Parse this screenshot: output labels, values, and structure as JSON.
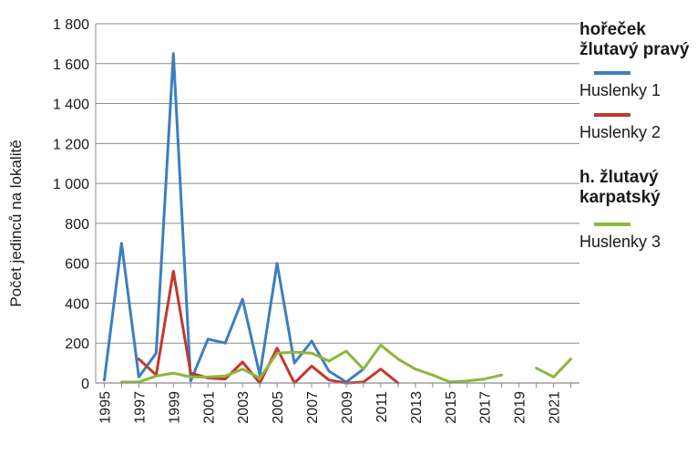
{
  "chart_data": {
    "type": "line",
    "ylabel": "Počet jedinců na lokalitě",
    "xlabel": "",
    "ylim": [
      0,
      1800
    ],
    "xlim": [
      1995,
      2022
    ],
    "yticks": [
      0,
      200,
      400,
      600,
      800,
      1000,
      1200,
      1400,
      1600,
      1800
    ],
    "ytick_labels": [
      "0",
      "200",
      "400",
      "600",
      "800",
      "1 000",
      "1 200",
      "1 400",
      "1 600",
      "1 800"
    ],
    "xtick_labels": [
      "1995",
      "1997",
      "1999",
      "2001",
      "2003",
      "2005",
      "2007",
      "2009",
      "2011",
      "2013",
      "2015",
      "2017",
      "2019",
      "2021"
    ],
    "grid": "horizontal",
    "legend_position": "right",
    "legend_groups": [
      {
        "title": "hořeček žlutavý pravý",
        "series_indices": [
          0,
          1
        ]
      },
      {
        "title": "h. žlutavý karpatský",
        "series_indices": [
          2
        ]
      }
    ],
    "series": [
      {
        "name": "Huslenky 1",
        "color": "#3d7ebf",
        "points": [
          [
            1995,
            15
          ],
          [
            1996,
            700
          ],
          [
            1997,
            30
          ],
          [
            1998,
            150
          ],
          [
            1999,
            1650
          ],
          [
            2000,
            10
          ],
          [
            2001,
            220
          ],
          [
            2002,
            200
          ],
          [
            2003,
            420
          ],
          [
            2004,
            40
          ],
          [
            2005,
            600
          ],
          [
            2006,
            100
          ],
          [
            2007,
            210
          ],
          [
            2008,
            60
          ],
          [
            2009,
            5
          ],
          [
            2010,
            70
          ]
        ]
      },
      {
        "name": "Huslenky 2",
        "color": "#c0392b",
        "points": [
          [
            1997,
            120
          ],
          [
            1998,
            40
          ],
          [
            1999,
            560
          ],
          [
            2000,
            50
          ],
          [
            2001,
            25
          ],
          [
            2002,
            20
          ],
          [
            2003,
            105
          ],
          [
            2004,
            0
          ],
          [
            2005,
            175
          ],
          [
            2006,
            0
          ],
          [
            2007,
            85
          ],
          [
            2008,
            15
          ],
          [
            2009,
            0
          ],
          [
            2010,
            5
          ],
          [
            2011,
            70
          ],
          [
            2012,
            0
          ]
        ]
      },
      {
        "name": "Huslenky 3",
        "color": "#8db63c",
        "segments": [
          [
            [
              1996,
              5
            ],
            [
              1997,
              5
            ],
            [
              1998,
              35
            ],
            [
              1999,
              50
            ],
            [
              2000,
              30
            ],
            [
              2001,
              30
            ],
            [
              2002,
              35
            ],
            [
              2003,
              70
            ],
            [
              2004,
              25
            ],
            [
              2005,
              150
            ],
            [
              2006,
              155
            ],
            [
              2007,
              150
            ],
            [
              2008,
              110
            ],
            [
              2009,
              160
            ],
            [
              2010,
              70
            ],
            [
              2011,
              190
            ],
            [
              2012,
              120
            ],
            [
              2013,
              70
            ],
            [
              2014,
              40
            ],
            [
              2015,
              5
            ],
            [
              2016,
              10
            ],
            [
              2017,
              20
            ],
            [
              2018,
              40
            ]
          ],
          [
            [
              2020,
              75
            ],
            [
              2021,
              30
            ],
            [
              2022,
              120
            ]
          ]
        ]
      }
    ]
  }
}
